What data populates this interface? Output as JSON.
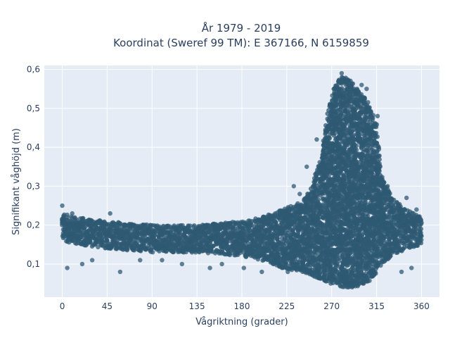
{
  "chart_data": {
    "type": "scatter",
    "title_lines": [
      "År 1979 - 2019",
      "Koordinat (Sweref 99 TM): E 367166, N 6159859"
    ],
    "xlabel": "Vågriktning (grader)",
    "ylabel": "Signifikant våghöjd (m)",
    "xlim": [
      -18,
      378
    ],
    "ylim": [
      0.015,
      0.61
    ],
    "xticks": [
      0,
      45,
      90,
      135,
      180,
      225,
      270,
      315,
      360
    ],
    "xtick_labels": [
      "0",
      "45",
      "90",
      "135",
      "180",
      "225",
      "270",
      "315",
      "360"
    ],
    "yticks": [
      0.1,
      0.2,
      0.3,
      0.4,
      0.5,
      0.6
    ],
    "ytick_labels": [
      "0,1",
      "0,2",
      "0,3",
      "0,4",
      "0,5",
      "0,6"
    ],
    "grid": true,
    "legend": "none",
    "marker_color": "#2f5a73",
    "plot_bg": "#e5ecf6",
    "envelope": {
      "x": [
        0,
        15,
        45,
        90,
        135,
        180,
        200,
        220,
        240,
        250,
        260,
        265,
        270,
        275,
        280,
        285,
        290,
        295,
        300,
        305,
        310,
        315,
        320,
        330,
        345,
        360
      ],
      "y_low": [
        0.16,
        0.15,
        0.14,
        0.13,
        0.13,
        0.12,
        0.11,
        0.09,
        0.08,
        0.07,
        0.06,
        0.05,
        0.05,
        0.05,
        0.04,
        0.04,
        0.04,
        0.04,
        0.05,
        0.05,
        0.06,
        0.08,
        0.1,
        0.12,
        0.14,
        0.15
      ],
      "y_high": [
        0.23,
        0.22,
        0.21,
        0.2,
        0.2,
        0.21,
        0.22,
        0.24,
        0.26,
        0.3,
        0.38,
        0.48,
        0.54,
        0.57,
        0.58,
        0.58,
        0.57,
        0.55,
        0.54,
        0.52,
        0.5,
        0.46,
        0.33,
        0.27,
        0.24,
        0.22
      ]
    },
    "outliers": [
      {
        "x": 0,
        "y": 0.25
      },
      {
        "x": 5,
        "y": 0.09
      },
      {
        "x": 10,
        "y": 0.23
      },
      {
        "x": 20,
        "y": 0.1
      },
      {
        "x": 30,
        "y": 0.11
      },
      {
        "x": 48,
        "y": 0.23
      },
      {
        "x": 58,
        "y": 0.08
      },
      {
        "x": 78,
        "y": 0.11
      },
      {
        "x": 100,
        "y": 0.11
      },
      {
        "x": 120,
        "y": 0.1
      },
      {
        "x": 148,
        "y": 0.09
      },
      {
        "x": 160,
        "y": 0.1
      },
      {
        "x": 182,
        "y": 0.09
      },
      {
        "x": 200,
        "y": 0.08
      },
      {
        "x": 212,
        "y": 0.1
      },
      {
        "x": 226,
        "y": 0.08
      },
      {
        "x": 232,
        "y": 0.3
      },
      {
        "x": 238,
        "y": 0.28
      },
      {
        "x": 245,
        "y": 0.35
      },
      {
        "x": 255,
        "y": 0.42
      },
      {
        "x": 280,
        "y": 0.59
      },
      {
        "x": 300,
        "y": 0.56
      },
      {
        "x": 305,
        "y": 0.55
      },
      {
        "x": 316,
        "y": 0.48
      },
      {
        "x": 326,
        "y": 0.3
      },
      {
        "x": 340,
        "y": 0.08
      },
      {
        "x": 350,
        "y": 0.09
      },
      {
        "x": 355,
        "y": 0.24
      },
      {
        "x": 358,
        "y": 0.16
      },
      {
        "x": 345,
        "y": 0.27
      }
    ]
  }
}
